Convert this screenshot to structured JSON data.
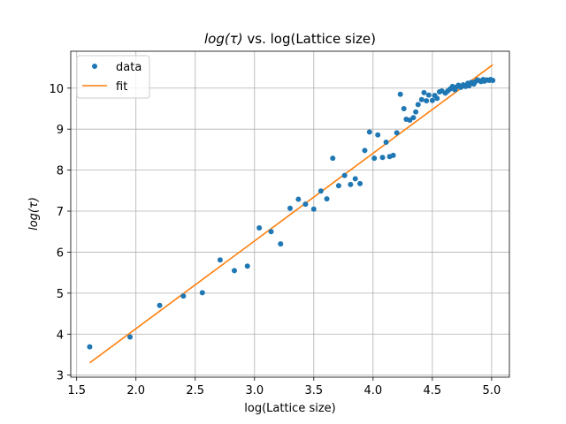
{
  "chart_data": {
    "type": "scatter",
    "title_main": "log(τ)",
    "title_rest": " vs. log(Lattice size)",
    "xlabel": "log(Lattice size)",
    "ylabel": "log(τ)",
    "xlim": [
      1.45,
      5.15
    ],
    "ylim": [
      2.95,
      10.9
    ],
    "xticks": [
      "1.5",
      "2.0",
      "2.5",
      "3.0",
      "3.5",
      "4.0",
      "4.5",
      "5.0"
    ],
    "xtick_values": [
      1.5,
      2.0,
      2.5,
      3.0,
      3.5,
      4.0,
      4.5,
      5.0
    ],
    "yticks": [
      "3",
      "4",
      "5",
      "6",
      "7",
      "8",
      "9",
      "10"
    ],
    "ytick_values": [
      3,
      4,
      5,
      6,
      7,
      8,
      9,
      10
    ],
    "grid": true,
    "legend_position": "top-left",
    "series": [
      {
        "name": "data",
        "kind": "points",
        "color": "#1f77b4",
        "x": [
          1.61,
          1.95,
          2.2,
          2.4,
          2.56,
          2.71,
          2.83,
          2.94,
          3.04,
          3.14,
          3.22,
          3.3,
          3.37,
          3.43,
          3.5,
          3.56,
          3.61,
          3.66,
          3.71,
          3.76,
          3.81,
          3.85,
          3.89,
          3.93,
          3.97,
          4.01,
          4.04,
          4.08,
          4.11,
          4.14,
          4.17,
          4.2,
          4.23,
          4.26,
          4.28,
          4.31,
          4.34,
          4.36,
          4.38,
          4.41,
          4.43,
          4.45,
          4.47,
          4.5,
          4.52,
          4.54,
          4.56,
          4.58,
          4.61,
          4.63,
          4.65,
          4.67,
          4.69,
          4.7,
          4.72,
          4.74,
          4.76,
          4.78,
          4.8,
          4.81,
          4.83,
          4.85,
          4.86,
          4.88,
          4.9,
          4.91,
          4.93,
          4.94,
          4.96,
          4.98,
          4.99,
          5.01
        ],
        "y": [
          3.69,
          3.93,
          4.7,
          4.93,
          5.01,
          5.81,
          5.55,
          5.66,
          6.59,
          6.5,
          6.2,
          7.07,
          7.29,
          7.17,
          7.05,
          7.49,
          7.3,
          8.29,
          7.62,
          7.87,
          7.65,
          7.79,
          7.67,
          8.48,
          8.93,
          8.29,
          8.86,
          8.31,
          8.68,
          8.33,
          8.36,
          8.91,
          9.85,
          9.5,
          9.24,
          9.22,
          9.28,
          9.42,
          9.6,
          9.72,
          9.89,
          9.69,
          9.83,
          9.7,
          9.82,
          9.75,
          9.91,
          9.93,
          9.88,
          9.93,
          9.98,
          10.04,
          9.96,
          10.02,
          10.07,
          10.02,
          10.08,
          10.04,
          10.12,
          10.06,
          10.14,
          10.1,
          10.15,
          10.2,
          10.18,
          10.16,
          10.21,
          10.17,
          10.2,
          10.19,
          10.21,
          10.19
        ]
      },
      {
        "name": "fit",
        "kind": "line",
        "color": "#ff7f0e",
        "x": [
          1.61,
          5.01
        ],
        "y": [
          3.3,
          10.57
        ]
      }
    ]
  }
}
